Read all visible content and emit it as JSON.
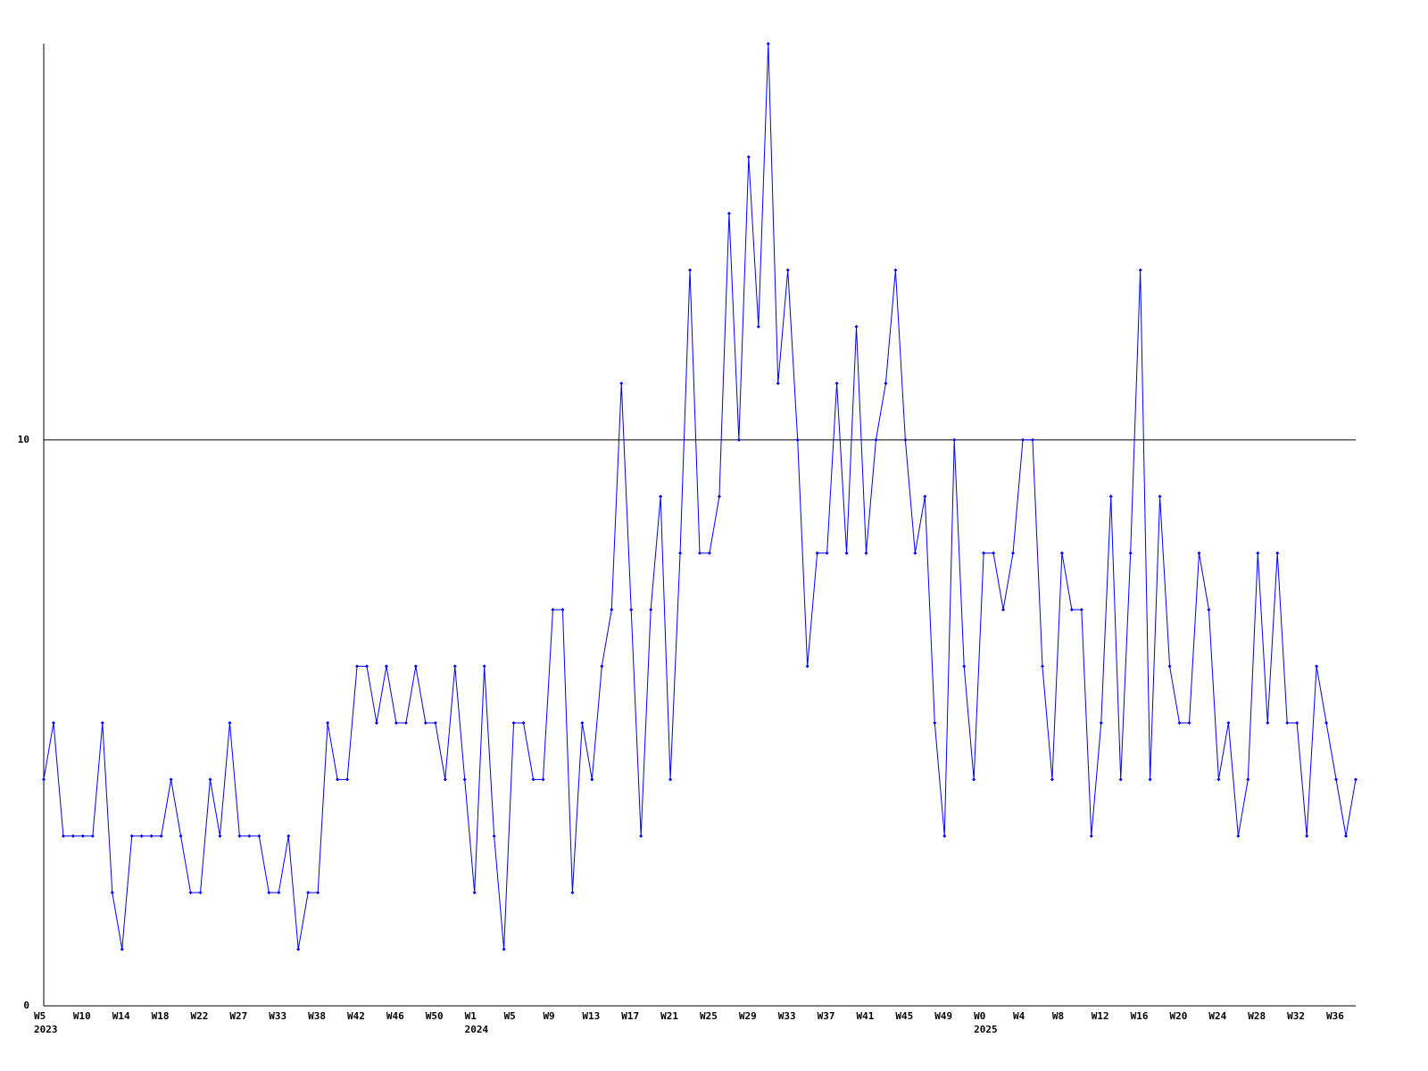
{
  "chart_data": {
    "type": "line",
    "categories": [
      "W5",
      null,
      null,
      null,
      "W10",
      null,
      null,
      null,
      "W14",
      null,
      null,
      null,
      "W18",
      null,
      null,
      null,
      "W22",
      null,
      null,
      null,
      "W27",
      null,
      null,
      null,
      "W33",
      null,
      null,
      null,
      "W38",
      null,
      null,
      null,
      "W42",
      null,
      null,
      null,
      "W46",
      null,
      null,
      null,
      "W50",
      null,
      null,
      null,
      "W1",
      null,
      null,
      null,
      "W5",
      null,
      null,
      null,
      "W9",
      null,
      null,
      null,
      "W13",
      null,
      null,
      null,
      "W17",
      null,
      null,
      null,
      "W21",
      null,
      null,
      null,
      "W25",
      null,
      null,
      null,
      "W29",
      null,
      null,
      null,
      "W33",
      null,
      null,
      null,
      "W37",
      null,
      null,
      null,
      "W41",
      null,
      null,
      null,
      "W45",
      null,
      null,
      null,
      "W49",
      null,
      null,
      null,
      "W0",
      null,
      null,
      null,
      "W4",
      null,
      null,
      null,
      "W8",
      null,
      null,
      null,
      "W12",
      null,
      null,
      null,
      "W16",
      null,
      null,
      null,
      "W20",
      null,
      null,
      null,
      "W24",
      null,
      null,
      null,
      "W28",
      null,
      null,
      null,
      "W32",
      null,
      null,
      null,
      "W36",
      null,
      null
    ],
    "years": [
      "2023",
      null,
      null,
      null,
      null,
      null,
      null,
      null,
      null,
      null,
      null,
      null,
      null,
      null,
      null,
      null,
      null,
      null,
      null,
      null,
      null,
      null,
      null,
      null,
      null,
      null,
      null,
      null,
      null,
      null,
      null,
      null,
      null,
      null,
      null,
      null,
      null,
      null,
      null,
      null,
      null,
      null,
      null,
      null,
      "2024",
      null,
      null,
      null,
      null,
      null,
      null,
      null,
      null,
      null,
      null,
      null,
      null,
      null,
      null,
      null,
      null,
      null,
      null,
      null,
      null,
      null,
      null,
      null,
      null,
      null,
      null,
      null,
      null,
      null,
      null,
      null,
      null,
      null,
      null,
      null,
      null,
      null,
      null,
      null,
      null,
      null,
      null,
      null,
      null,
      null,
      null,
      null,
      null,
      null,
      null,
      null,
      "2025",
      null,
      null,
      null,
      null,
      null,
      null,
      null,
      null,
      null,
      null,
      null,
      null,
      null,
      null,
      null,
      null,
      null,
      null,
      null,
      null,
      null,
      null,
      null,
      null,
      null,
      null,
      null,
      null,
      null,
      null,
      null,
      null,
      null,
      null,
      null,
      null,
      null,
      null
    ],
    "series": [
      {
        "color": "#0000ff",
        "values": [
          4,
          5,
          3,
          3,
          3,
          3,
          5,
          2,
          1,
          3,
          3,
          3,
          3,
          4,
          3,
          2,
          2,
          4,
          3,
          5,
          3,
          3,
          3,
          2,
          2,
          3,
          1,
          2,
          2,
          5,
          4,
          4,
          6,
          6,
          5,
          6,
          5,
          5,
          6,
          5,
          5,
          4,
          6,
          4,
          2,
          6,
          3,
          1,
          5,
          5,
          4,
          4,
          7,
          7,
          2,
          5,
          4,
          6,
          7,
          11,
          7,
          3,
          7,
          9,
          4,
          8,
          13,
          8,
          8,
          9,
          14,
          10,
          15,
          12,
          17,
          11,
          13,
          10,
          6,
          8,
          8,
          11,
          8,
          12,
          8,
          10,
          11,
          13,
          10,
          8,
          9,
          5,
          3,
          10,
          6,
          4,
          8,
          8,
          7,
          8,
          10,
          10,
          6,
          4,
          8,
          7,
          7,
          3,
          5,
          9,
          4,
          8,
          13,
          4,
          9,
          6,
          5,
          5,
          8,
          7,
          4,
          5,
          3,
          4,
          8,
          5,
          8,
          5,
          5,
          3,
          6,
          5,
          4,
          3,
          4
        ]
      }
    ],
    "ylim": [
      0,
      17
    ],
    "yticks": [
      0,
      10
    ],
    "grid": true
  }
}
